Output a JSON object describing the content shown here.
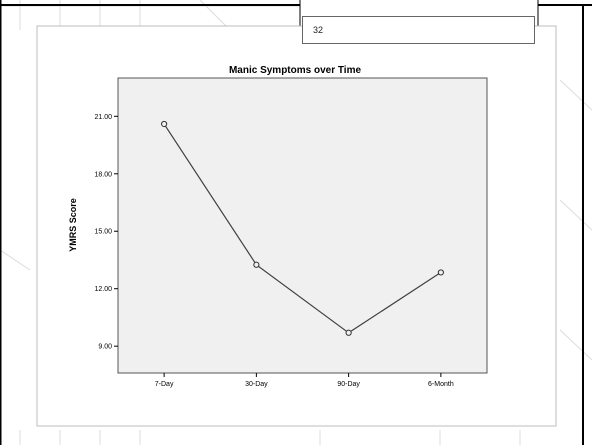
{
  "slide": {
    "number": "32",
    "colors": {
      "frame": "#000000",
      "panel_bg": "#ffffff",
      "plot_bg": "#f0f0f0",
      "line": "#404040"
    }
  },
  "chart_data": {
    "type": "line",
    "title": "Manic Symptoms over Time",
    "xlabel": "",
    "ylabel": "YMRS Score",
    "categories": [
      "7-Day",
      "30-Day",
      "90-Day",
      "6-Month"
    ],
    "series": [
      {
        "values": [
          20.6,
          13.25,
          9.7,
          12.85
        ]
      }
    ],
    "yticks": [
      "9.00",
      "12.00",
      "15.00",
      "18.00",
      "21.00"
    ],
    "ylim": [
      7.6,
      23.0
    ],
    "grid": false,
    "legend": "none"
  }
}
